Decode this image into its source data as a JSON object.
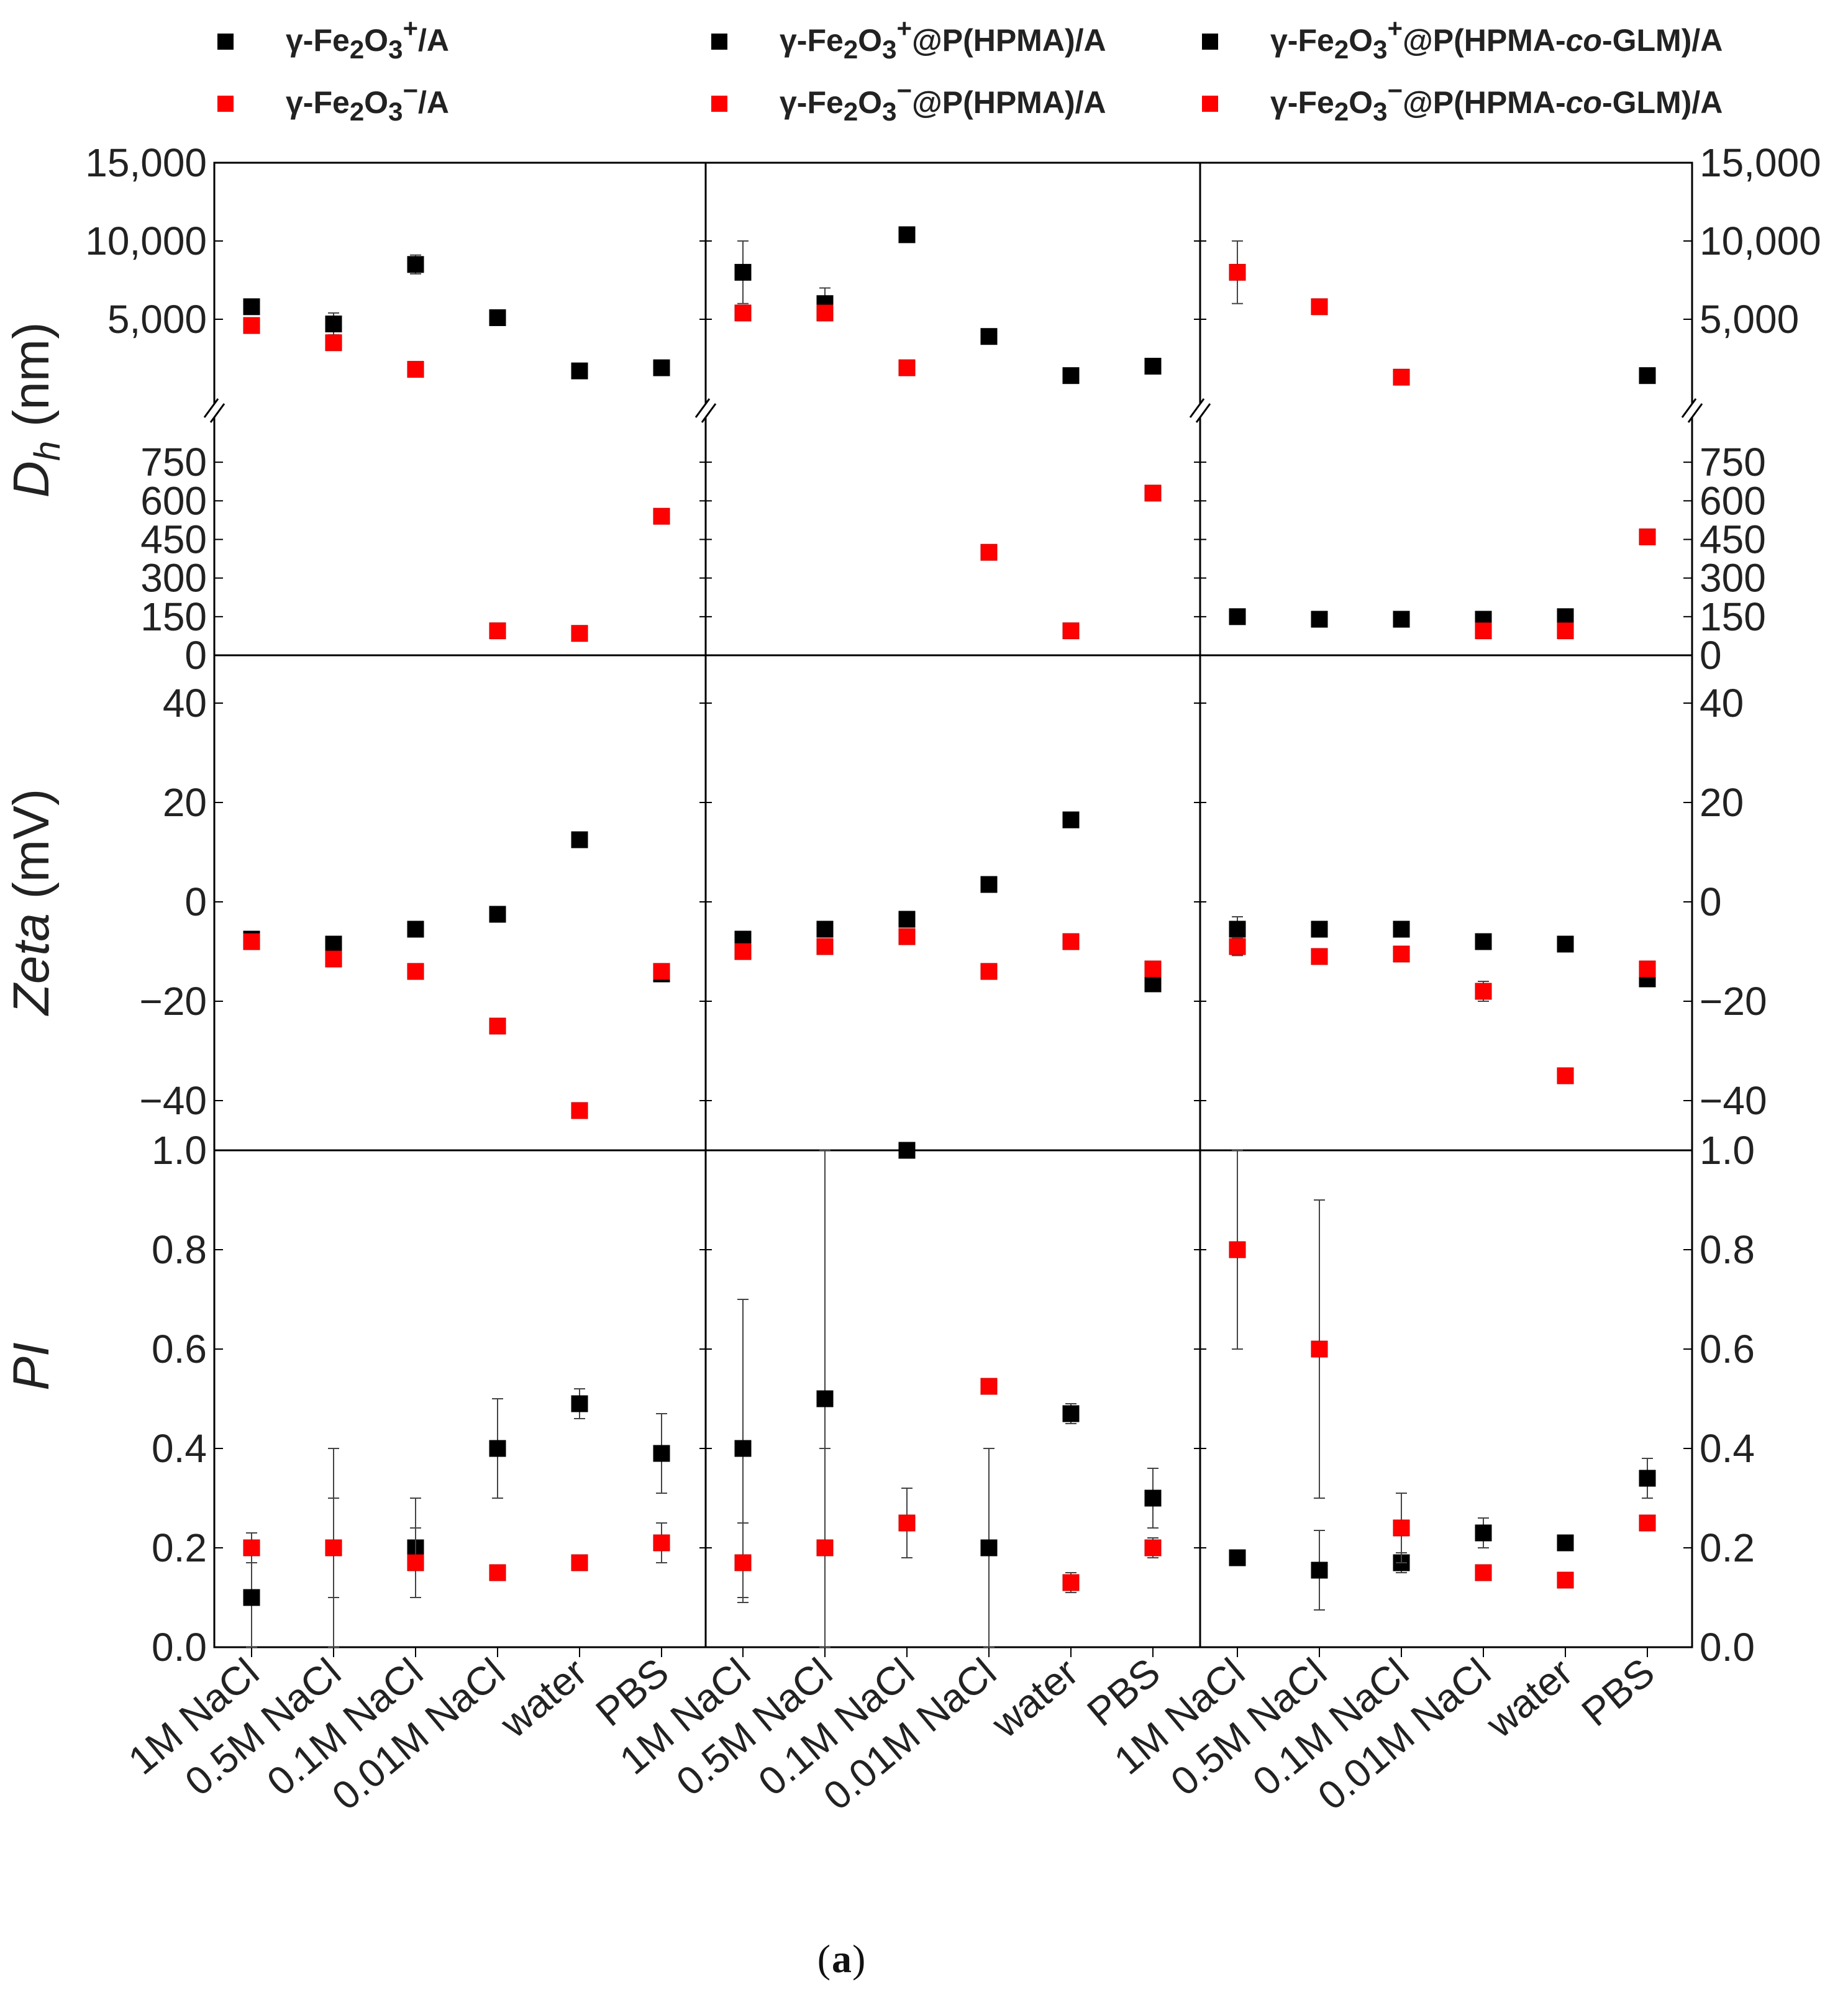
{
  "caption": {
    "text": "a"
  },
  "legend": [
    {
      "label": "γ-Fe2O3+/A",
      "color": "#000000"
    },
    {
      "label": "γ-Fe2O3−/A",
      "color": "#ff0000"
    },
    {
      "label": "γ-Fe2O3+@P(HPMA)/A",
      "color": "#000000"
    },
    {
      "label": "γ-Fe2O3−@P(HPMA)/A",
      "color": "#ff0000"
    },
    {
      "label": "γ-Fe2O3+@P(HPMA-co-GLM)/A",
      "color": "#000000"
    },
    {
      "label": "γ-Fe2O3−@P(HPMA-co-GLM)/A",
      "color": "#ff0000"
    }
  ],
  "axis_titles": {
    "dh": "Dh (nm)",
    "zeta": "Zeta (mV)",
    "pi": "PI"
  },
  "chart_data": {
    "type": "scatter",
    "categories": [
      "1M NaCl",
      "0.5M NaCl",
      "0.1M NaCl",
      "0.01M NaCl",
      "water",
      "PBS"
    ],
    "rows": {
      "dh_upper": {
        "ylim": [
          0,
          15000
        ],
        "ticks": [
          "5,000",
          "10,000",
          "15,000"
        ],
        "tick_values": [
          5000,
          10000,
          15000
        ]
      },
      "dh_lower": {
        "ylim": [
          0,
          900
        ],
        "ticks": [
          "0",
          "150",
          "300",
          "450",
          "600",
          "750"
        ],
        "tick_values": [
          0,
          150,
          300,
          450,
          600,
          750
        ]
      },
      "zeta": {
        "ylim": [
          -50,
          50
        ],
        "ticks": [
          "−40",
          "−20",
          "0",
          "20",
          "40"
        ],
        "tick_values": [
          -40,
          -20,
          0,
          20,
          40
        ]
      },
      "pi": {
        "ylim": [
          0,
          1
        ],
        "ticks": [
          "0.0",
          "0.2",
          "0.4",
          "0.6",
          "0.8",
          "1.0"
        ],
        "tick_values": [
          0,
          0.2,
          0.4,
          0.6,
          0.8,
          1.0
        ]
      }
    },
    "panels": [
      {
        "name": "γ-Fe2O3/A",
        "series": [
          {
            "name": "γ-Fe2O3+/A",
            "color": "#000000",
            "dh": [
              5800,
              4700,
              8500,
              5100,
              1700,
              1900
            ],
            "dh_err": [
              300,
              700,
              600,
              300,
              200,
              200
            ],
            "zeta": [
              -7.5,
              -8.5,
              -5.5,
              -2.5,
              12.5,
              -14.5
            ],
            "zeta_err": [
              0.8,
              0.8,
              0.8,
              0.6,
              1.0,
              1.2
            ],
            "pi": [
              0.1,
              0.2,
              0.2,
              0.4,
              0.49,
              0.39
            ],
            "pi_err": [
              0.1,
              0.2,
              0.1,
              0.1,
              0.03,
              0.08
            ]
          },
          {
            "name": "γ-Fe2O3−/A",
            "color": "#ff0000",
            "dh": [
              4600,
              3500,
              1800,
              95,
              85,
              540
            ],
            "dh_err": [
              200,
              200,
              100,
              5,
              5,
              10
            ],
            "zeta": [
              -8,
              -11.5,
              -14,
              -25,
              -42,
              -14
            ],
            "zeta_err": [
              0.5,
              1.2,
              0.8,
              0.6,
              0.8,
              0.5
            ],
            "pi": [
              0.2,
              0.2,
              0.17,
              0.15,
              0.17,
              0.21
            ],
            "pi_err": [
              0.03,
              0.1,
              0.07,
              0.01,
              0.01,
              0.04
            ]
          }
        ]
      },
      {
        "name": "γ-Fe2O3@P(HPMA)/A",
        "series": [
          {
            "name": "γ-Fe2O3+@P(HPMA)/A",
            "color": "#000000",
            "dh": [
              8000,
              6000,
              10400,
              3900,
              1400,
              2000
            ],
            "dh_err": [
              2000,
              1000,
              300,
              100,
              100,
              200
            ],
            "zeta": [
              -7.5,
              -5.5,
              -3.5,
              3.5,
              16.5,
              -16.5
            ],
            "zeta_err": [
              0.8,
              0.5,
              0.5,
              0.5,
              1.0,
              0.8
            ],
            "pi": [
              0.4,
              0.5,
              1.0,
              0.2,
              0.47,
              0.3
            ],
            "pi_err": [
              0.3,
              0.5,
              0.0,
              0.2,
              0.02,
              0.06
            ]
          },
          {
            "name": "γ-Fe2O3−@P(HPMA)/A",
            "color": "#ff0000",
            "dh": [
              5400,
              5400,
              1900,
              400,
              95,
              630
            ],
            "dh_err": [
              300,
              300,
              400,
              10,
              5,
              10
            ],
            "zeta": [
              -10,
              -9,
              -7,
              -14,
              -8,
              -13.5
            ],
            "zeta_err": [
              0.8,
              0.8,
              0.8,
              0.6,
              0.6,
              0.6
            ],
            "pi": [
              0.17,
              0.2,
              0.25,
              0.525,
              0.13,
              0.2
            ],
            "pi_err": [
              0.08,
              0.2,
              0.07,
              0.01,
              0.02,
              0.02
            ]
          }
        ]
      },
      {
        "name": "γ-Fe2O3@P(HPMA-co-GLM)/A",
        "series": [
          {
            "name": "γ-Fe2O3+@P(HPMA-co-GLM)/A",
            "color": "#000000",
            "dh": [
              150,
              140,
              140,
              140,
              150,
              1400
            ],
            "dh_err": [
              5,
              5,
              5,
              5,
              10,
              100
            ],
            "zeta": [
              -5.5,
              -5.5,
              -5.5,
              -8,
              -8.5,
              -15.5
            ],
            "zeta_err": [
              2.5,
              0.5,
              0.5,
              0.5,
              0.5,
              0.8
            ],
            "pi": [
              0.18,
              0.155,
              0.17,
              0.23,
              0.21,
              0.34
            ],
            "pi_err": [
              0.01,
              0.08,
              0.02,
              0.03,
              0.01,
              0.04
            ]
          },
          {
            "name": "γ-Fe2O3−@P(HPMA-co-GLM)/A",
            "color": "#ff0000",
            "dh": [
              8000,
              5800,
              1300,
              95,
              95,
              460
            ],
            "dh_err": [
              2000,
              200,
              100,
              5,
              5,
              10
            ],
            "zeta": [
              -9,
              -11,
              -10.5,
              -18,
              -35,
              -13.5
            ],
            "zeta_err": [
              1.8,
              0.6,
              0.6,
              2.0,
              0.5,
              0.5
            ],
            "pi": [
              0.8,
              0.6,
              0.24,
              0.15,
              0.135,
              0.25
            ],
            "pi_err": [
              0.2,
              0.3,
              0.07,
              0.01,
              0.01,
              0.01
            ]
          }
        ]
      }
    ]
  }
}
